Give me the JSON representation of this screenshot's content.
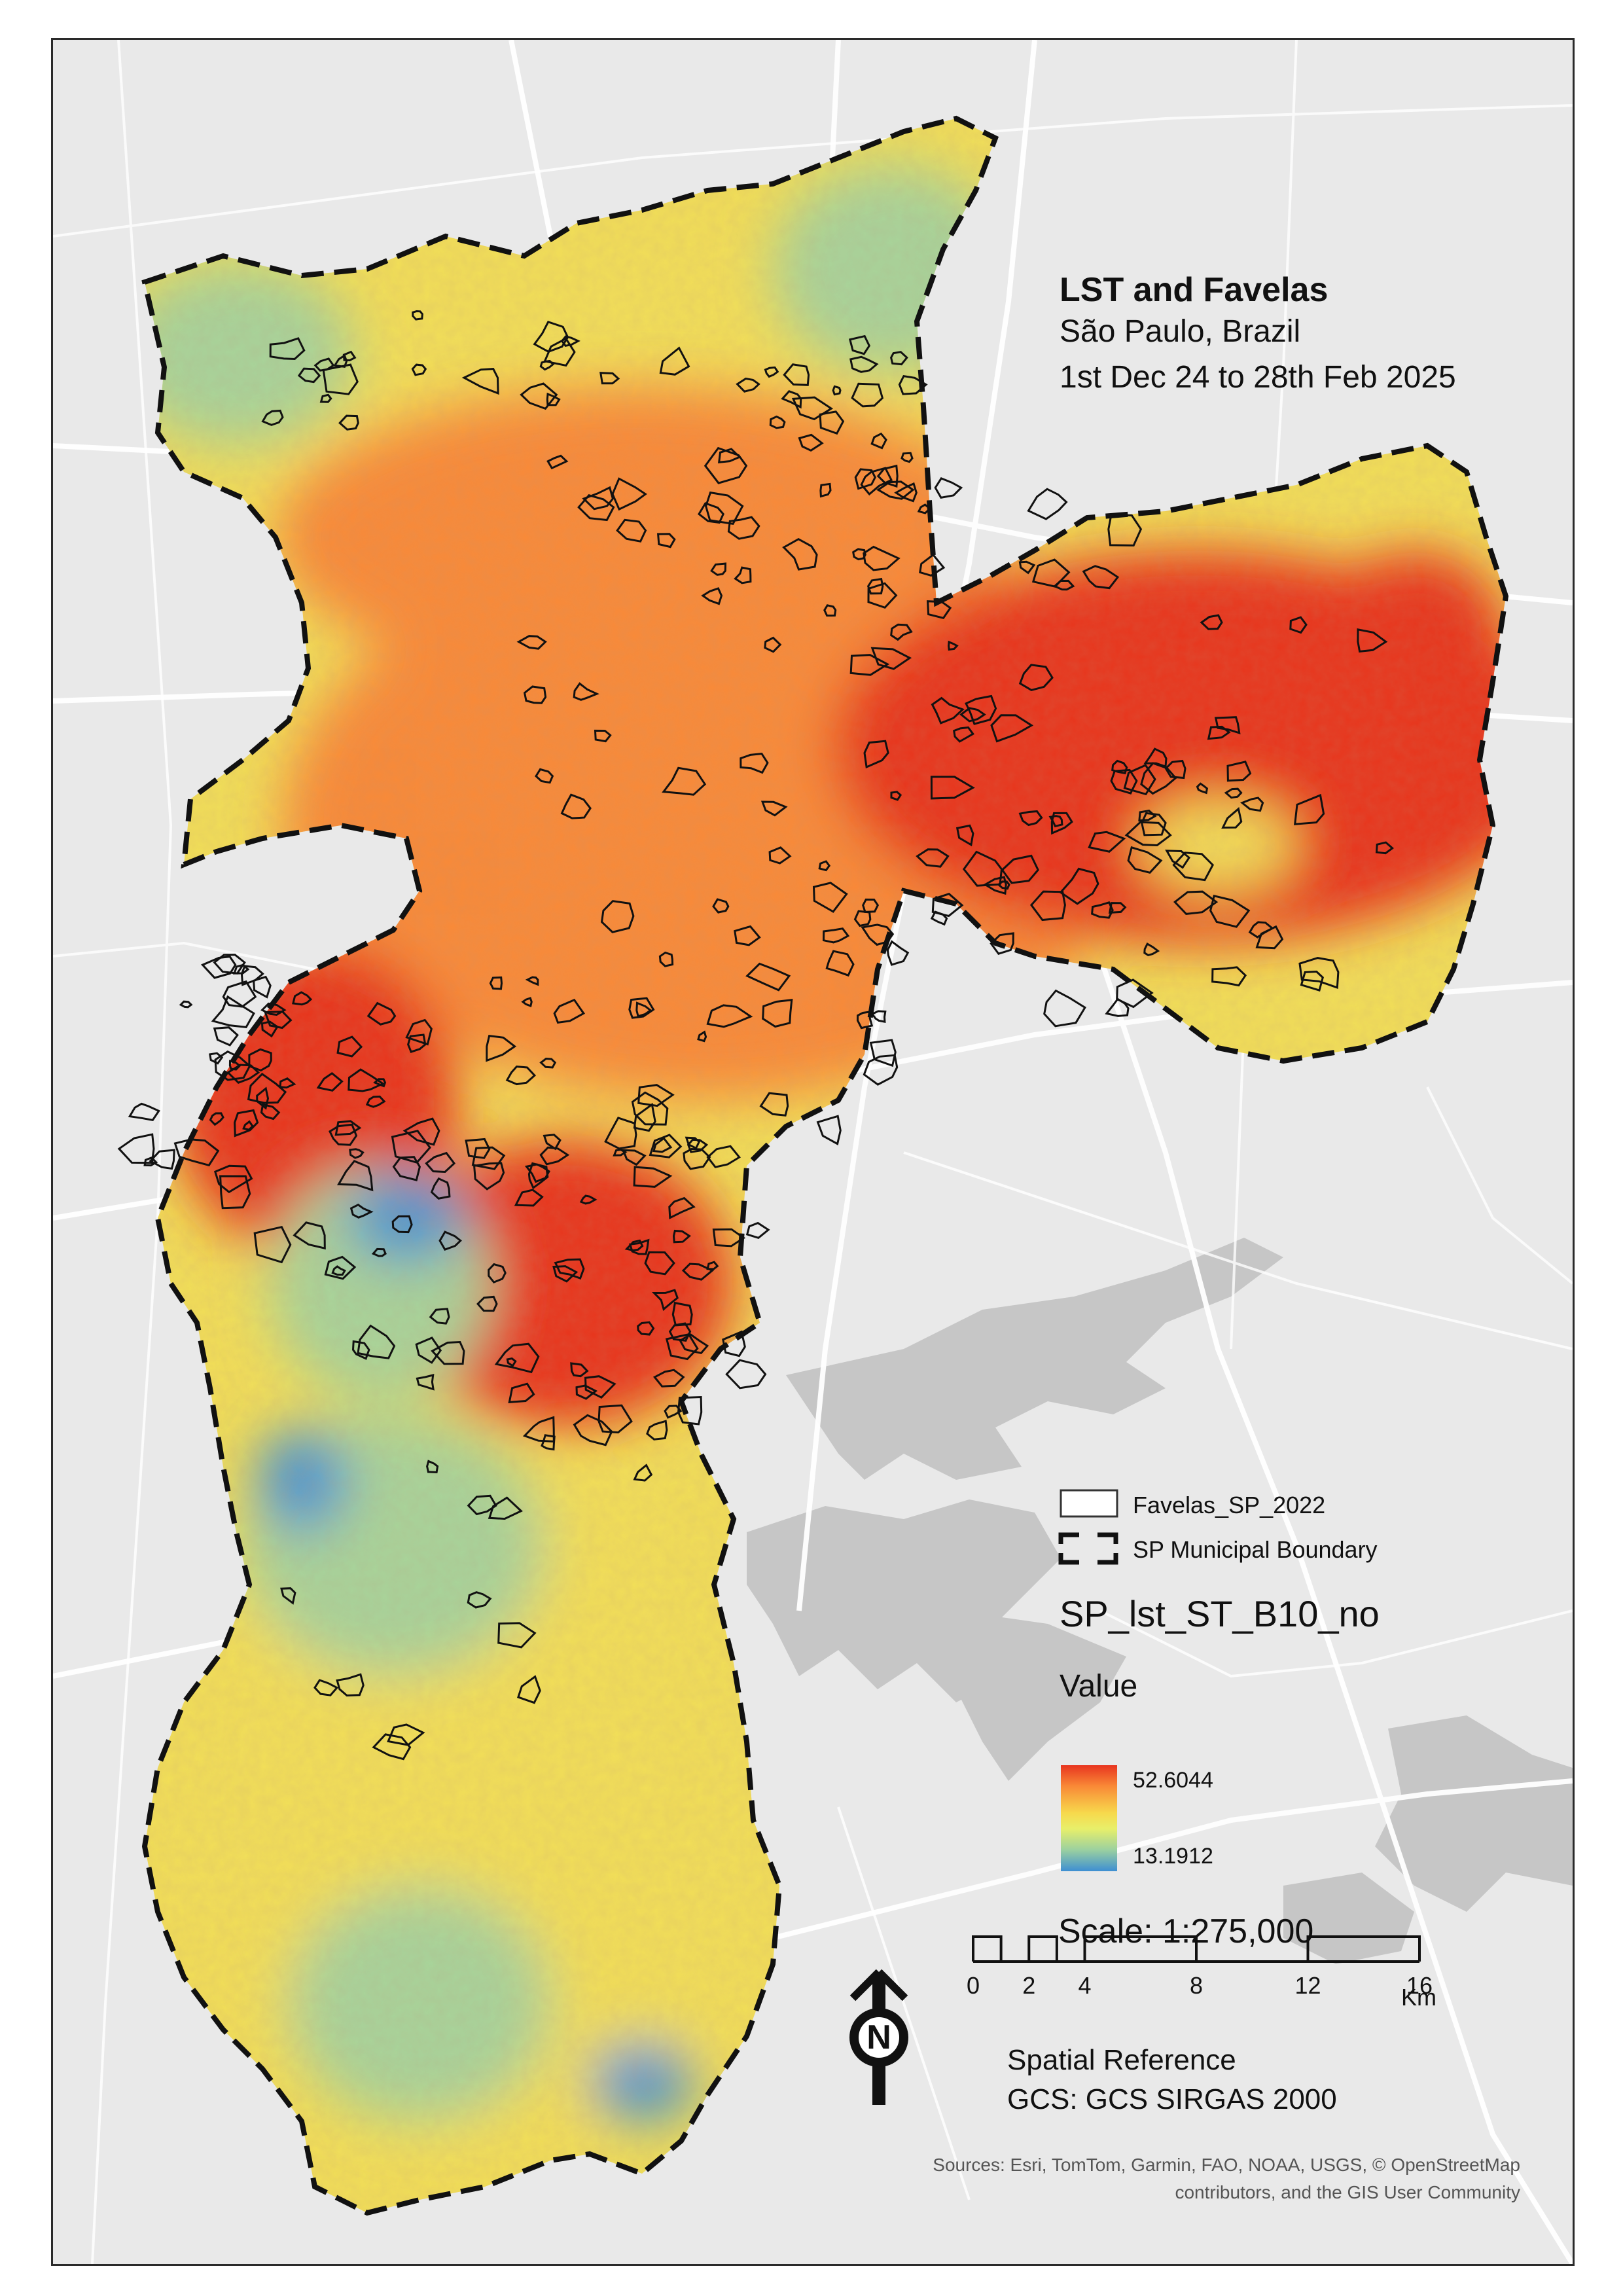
{
  "title": "LST and Favelas",
  "subtitle": "São Paulo, Brazil",
  "period": "1st Dec 24 to 28th Feb 2025",
  "legend": {
    "favelas_label": "Favelas_SP_2022",
    "boundary_label": "SP Municipal Boundary",
    "raster_name": "SP_lst_ST_B10_no",
    "value_heading": "Value",
    "max_value": "52.6044",
    "min_value": "13.1912",
    "ramp_colors": [
      "#e8351f",
      "#f98a37",
      "#f7d94c",
      "#e8ef6a",
      "#9ad0a0",
      "#3e8fd2"
    ]
  },
  "scale": {
    "text": "Scale: 1:275,000",
    "ticks": [
      "0",
      "2",
      "4",
      "8",
      "12",
      "16"
    ],
    "tick_values": [
      0,
      2,
      4,
      8,
      12,
      16
    ],
    "unit": "Km"
  },
  "north_arrow": {
    "label": "N",
    "icon": "north-arrow-icon"
  },
  "spatial_reference": {
    "heading": "Spatial Reference",
    "value": "GCS: GCS SIRGAS 2000"
  },
  "sources": {
    "line1": "Sources: Esri, TomTom, Garmin, FAO, NOAA, USGS, © OpenStreetMap",
    "line2": "contributors, and the GIS User Community"
  },
  "colors": {
    "hot": "#e8351f",
    "warm": "#f98a37",
    "mid": "#f2df58",
    "cool": "#a8d49a",
    "cold": "#4a95d1",
    "basemap": "#e9e9e9",
    "water": "#c9c9c9",
    "roads": "#ffffff"
  }
}
